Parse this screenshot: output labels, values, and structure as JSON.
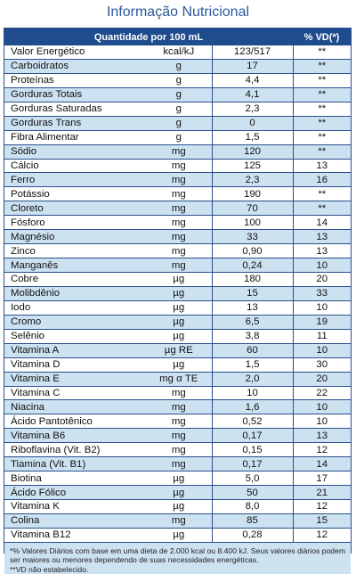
{
  "title": "Informação Nutricional",
  "header": {
    "quantity": "Quantidade por 100 mL",
    "vd": "% VD(*)"
  },
  "rows": [
    {
      "name": "Valor Energético",
      "unit": "kcal/kJ",
      "amount": "123/517",
      "vd": "**"
    },
    {
      "name": "Carboidratos",
      "unit": "g",
      "amount": "17",
      "vd": "**"
    },
    {
      "name": "Proteínas",
      "unit": "g",
      "amount": "4,4",
      "vd": "**"
    },
    {
      "name": "Gorduras Totais",
      "unit": "g",
      "amount": "4,1",
      "vd": "**"
    },
    {
      "name": "Gorduras Saturadas",
      "unit": "g",
      "amount": "2,3",
      "vd": "**"
    },
    {
      "name": "Gorduras Trans",
      "unit": "g",
      "amount": "0",
      "vd": "**"
    },
    {
      "name": "Fibra Alimentar",
      "unit": "g",
      "amount": "1,5",
      "vd": "**"
    },
    {
      "name": "Sódio",
      "unit": "mg",
      "amount": "120",
      "vd": "**"
    },
    {
      "name": "Cálcio",
      "unit": "mg",
      "amount": "125",
      "vd": "13"
    },
    {
      "name": "Ferro",
      "unit": "mg",
      "amount": "2,3",
      "vd": "16"
    },
    {
      "name": "Potássio",
      "unit": "mg",
      "amount": "190",
      "vd": "**"
    },
    {
      "name": "Cloreto",
      "unit": "mg",
      "amount": "70",
      "vd": "**"
    },
    {
      "name": "Fósforo",
      "unit": "mg",
      "amount": "100",
      "vd": "14"
    },
    {
      "name": "Magnésio",
      "unit": "mg",
      "amount": "33",
      "vd": "13"
    },
    {
      "name": "Zinco",
      "unit": "mg",
      "amount": "0,90",
      "vd": "13"
    },
    {
      "name": "Manganês",
      "unit": "mg",
      "amount": "0,24",
      "vd": "10"
    },
    {
      "name": "Cobre",
      "unit": "µg",
      "amount": "180",
      "vd": "20"
    },
    {
      "name": "Molibdênio",
      "unit": "µg",
      "amount": "15",
      "vd": "33"
    },
    {
      "name": "Iodo",
      "unit": "µg",
      "amount": "13",
      "vd": "10"
    },
    {
      "name": "Cromo",
      "unit": "µg",
      "amount": "6,5",
      "vd": "19"
    },
    {
      "name": "Selênio",
      "unit": "µg",
      "amount": "3,8",
      "vd": "11"
    },
    {
      "name": "Vitamina A",
      "unit": "µg RE",
      "amount": "60",
      "vd": "10"
    },
    {
      "name": "Vitamina D",
      "unit": "µg",
      "amount": "1,5",
      "vd": "30"
    },
    {
      "name": "Vitamina E",
      "unit": "mg α TE",
      "amount": "2,0",
      "vd": "20"
    },
    {
      "name": "Vitamina C",
      "unit": "mg",
      "amount": "10",
      "vd": "22"
    },
    {
      "name": "Niacina",
      "unit": "mg",
      "amount": "1,6",
      "vd": "10"
    },
    {
      "name": "Ácido Pantotênico",
      "unit": "mg",
      "amount": "0,52",
      "vd": "10"
    },
    {
      "name": "Vitamina B6",
      "unit": "mg",
      "amount": "0,17",
      "vd": "13"
    },
    {
      "name": "Riboflavina (Vit. B2)",
      "unit": "mg",
      "amount": "0,15",
      "vd": "12"
    },
    {
      "name": "Tiamina (Vit. B1)",
      "unit": "mg",
      "amount": "0,17",
      "vd": "14"
    },
    {
      "name": "Biotina",
      "unit": "µg",
      "amount": "5,0",
      "vd": "17"
    },
    {
      "name": "Ácido Fólico",
      "unit": "µg",
      "amount": "50",
      "vd": "21"
    },
    {
      "name": "Vitamina K",
      "unit": "µg",
      "amount": "8,0",
      "vd": "12"
    },
    {
      "name": "Colina",
      "unit": "mg",
      "amount": "85",
      "vd": "15"
    },
    {
      "name": "Vitamina B12",
      "unit": "µg",
      "amount": "0,28",
      "vd": "12"
    }
  ],
  "footnotes": [
    "*% Valores Diários com base em uma dieta de 2.000 kcal ou 8.400 kJ. Seus valores diários podem ser maiores ou menores dependendo de suas necessidades energéticas.",
    "**VD não estabelecido."
  ]
}
